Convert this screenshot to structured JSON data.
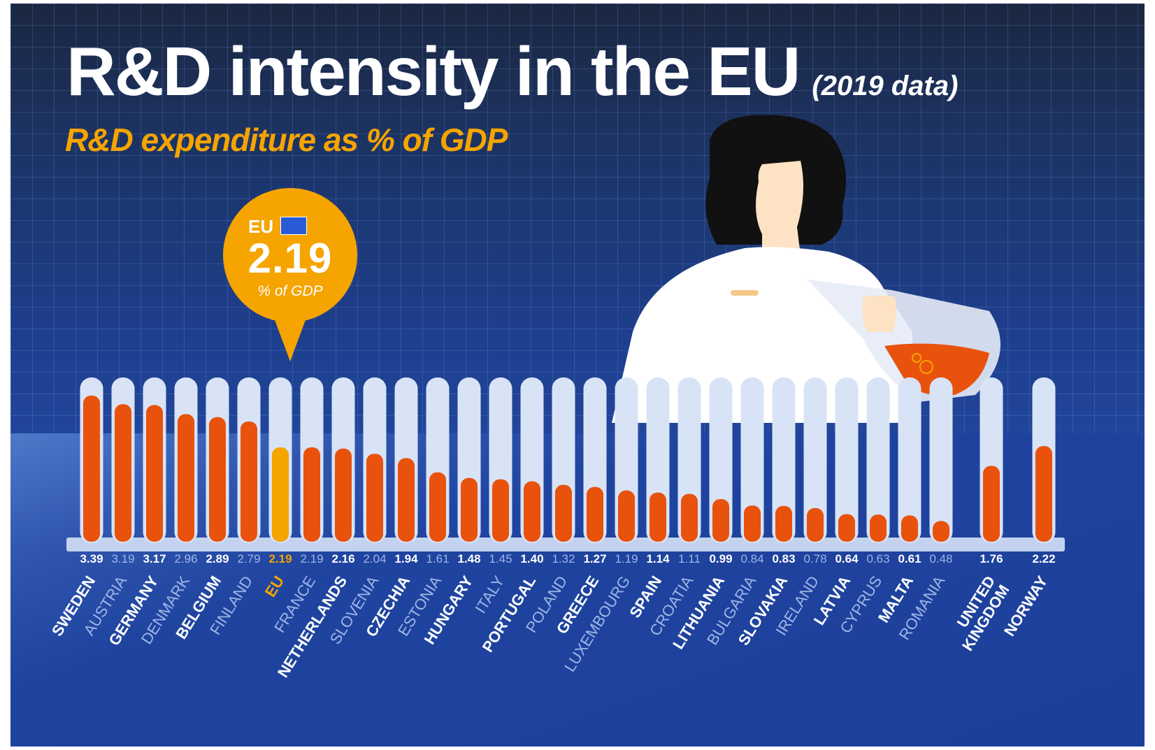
{
  "header": {
    "title": "R&D intensity in the EU",
    "title_note": "(2019 data)",
    "subtitle": "R&D expenditure as % of GDP"
  },
  "callout": {
    "label": "EU",
    "value": "2.19",
    "unit": "% of GDP"
  },
  "colors": {
    "bar": "#e8520c",
    "eu_bar": "#f5a400",
    "tube": "#d8e3f6",
    "label_bright": "#ffffff",
    "label_dim": "#9fb6e6"
  },
  "chart_data": {
    "type": "bar",
    "title": "R&D intensity in the EU",
    "subtitle": "R&D expenditure as % of GDP",
    "note": "(2019 data)",
    "ylim": [
      0,
      3.6
    ],
    "grid": false,
    "categories": [
      "SWEDEN",
      "AUSTRIA",
      "GERMANY",
      "DENMARK",
      "BELGIUM",
      "FINLAND",
      "EU",
      "FRANCE",
      "NETHERLANDS",
      "SLOVENIA",
      "CZECHIA",
      "ESTONIA",
      "HUNGARY",
      "ITALY",
      "PORTUGAL",
      "POLAND",
      "GREECE",
      "LUXEMBOURG",
      "SPAIN",
      "CROATIA",
      "LITHUANIA",
      "BULGARIA",
      "SLOVAKIA",
      "IRELAND",
      "LATVIA",
      "CYPRUS",
      "MALTA",
      "ROMANIA",
      "UNITED KINGDOM",
      "NORWAY"
    ],
    "values": [
      3.39,
      3.19,
      3.17,
      2.96,
      2.89,
      2.79,
      2.19,
      2.19,
      2.16,
      2.04,
      1.94,
      1.61,
      1.48,
      1.45,
      1.4,
      1.32,
      1.27,
      1.19,
      1.14,
      1.11,
      0.99,
      0.84,
      0.83,
      0.78,
      0.64,
      0.63,
      0.61,
      0.48,
      1.76,
      2.22
    ],
    "value_labels": [
      "3.39",
      "3.19",
      "3.17",
      "2.96",
      "2.89",
      "2.79",
      "2.19",
      "2.19",
      "2.16",
      "2.04",
      "1.94",
      "1.61",
      "1.48",
      "1.45",
      "1.40",
      "1.32",
      "1.27",
      "1.19",
      "1.14",
      "1.11",
      "0.99",
      "0.84",
      "0.83",
      "0.78",
      "0.64",
      "0.63",
      "0.61",
      "0.48",
      "1.76",
      "2.22"
    ],
    "highlight": "EU"
  }
}
